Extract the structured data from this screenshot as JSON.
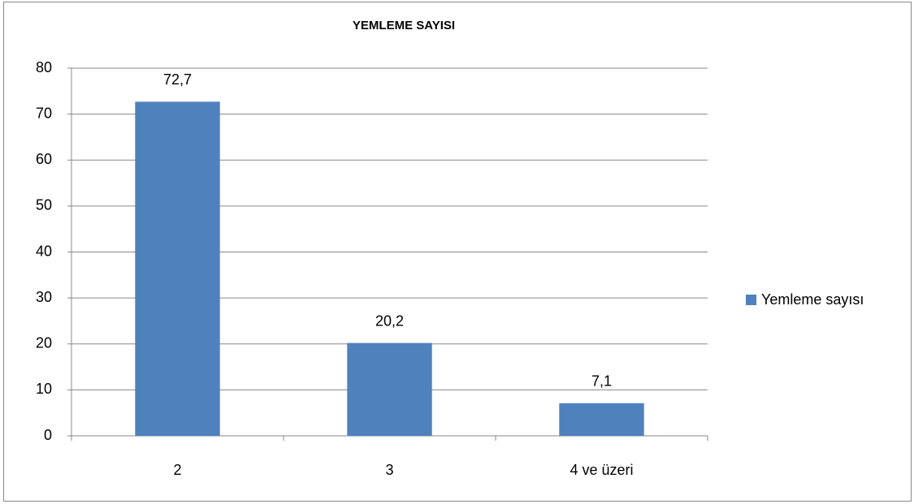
{
  "chart_data": {
    "type": "bar",
    "title": "YEMLEME SAYISI",
    "categories": [
      "2",
      "3",
      "4 ve üzeri"
    ],
    "series": [
      {
        "name": "Yemleme sayısı",
        "color": "#4f81bd",
        "values": [
          72.7,
          20.2,
          7.1
        ],
        "value_labels": [
          "72,7",
          "20,2",
          "7,1"
        ]
      }
    ],
    "ylim": [
      0,
      80
    ],
    "yticks": [
      0,
      10,
      20,
      30,
      40,
      50,
      60,
      70,
      80
    ],
    "grid": true,
    "legend": "right"
  }
}
